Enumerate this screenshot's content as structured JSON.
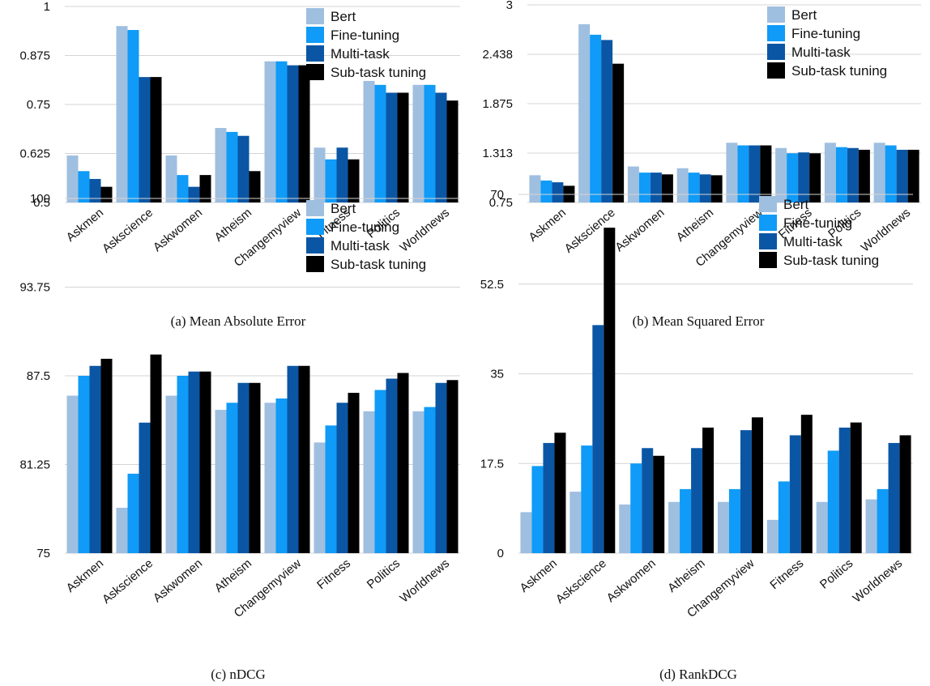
{
  "palette": {
    "Bert": "#9fbfe0",
    "Fine-tuning": "#0f9bf7",
    "Multi-task": "#0b56a4",
    "Sub-task tuning": "#000000"
  },
  "chart_data": [
    {
      "type": "bar",
      "caption": "(a) Mean Absolute Error",
      "categories": [
        "Askmen",
        "Askscience",
        "Askwomen",
        "Atheism",
        "Changemyview",
        "Fitness",
        "Politics",
        "Worldnews"
      ],
      "ylim": [
        0.5,
        1
      ],
      "yticks": [
        "1",
        "0.875",
        "0.75",
        "0.625",
        "0.5"
      ],
      "ytick_values": [
        1,
        0.875,
        0.75,
        0.625,
        0.5
      ],
      "grid": true,
      "legend": "top-right",
      "series": [
        {
          "name": "Bert",
          "values": [
            0.62,
            0.95,
            0.62,
            0.69,
            0.86,
            0.64,
            0.81,
            0.8
          ]
        },
        {
          "name": "Fine-tuning",
          "values": [
            0.58,
            0.94,
            0.57,
            0.68,
            0.86,
            0.61,
            0.8,
            0.8
          ]
        },
        {
          "name": "Multi-task",
          "values": [
            0.56,
            0.82,
            0.54,
            0.67,
            0.85,
            0.64,
            0.78,
            0.78
          ]
        },
        {
          "name": "Sub-task tuning",
          "values": [
            0.54,
            0.82,
            0.57,
            0.58,
            0.85,
            0.61,
            0.78,
            0.76
          ]
        }
      ]
    },
    {
      "type": "bar",
      "caption": "(b) Mean Squared Error",
      "categories": [
        "Askmen",
        "Askscience",
        "Askwomen",
        "Atheism",
        "Changemyview",
        "Fitness",
        "Politics",
        "Worldnews"
      ],
      "ylim": [
        0.75,
        3
      ],
      "yticks": [
        "3",
        "2.438",
        "1.875",
        "1.313",
        "0.75"
      ],
      "ytick_values": [
        3,
        2.438,
        1.875,
        1.313,
        0.75
      ],
      "grid": true,
      "legend": "top-right",
      "series": [
        {
          "name": "Bert",
          "values": [
            1.06,
            2.78,
            1.16,
            1.14,
            1.43,
            1.37,
            1.43,
            1.43
          ]
        },
        {
          "name": "Fine-tuning",
          "values": [
            1.0,
            2.66,
            1.09,
            1.09,
            1.4,
            1.31,
            1.38,
            1.4
          ]
        },
        {
          "name": "Multi-task",
          "values": [
            0.98,
            2.6,
            1.09,
            1.07,
            1.4,
            1.32,
            1.37,
            1.35
          ]
        },
        {
          "name": "Sub-task tuning",
          "values": [
            0.94,
            2.33,
            1.07,
            1.06,
            1.4,
            1.31,
            1.35,
            1.35
          ]
        }
      ]
    },
    {
      "type": "bar",
      "caption": "(c) nDCG",
      "categories": [
        "Askmen",
        "Askscience",
        "Askwomen",
        "Atheism",
        "Changemyview",
        "Fitness",
        "Politics",
        "Worldnews"
      ],
      "ylim": [
        75,
        100
      ],
      "yticks": [
        "100",
        "93.75",
        "87.5",
        "81.25",
        "75"
      ],
      "ytick_values": [
        100,
        93.75,
        87.5,
        81.25,
        75
      ],
      "grid": true,
      "legend": "top-right",
      "series": [
        {
          "name": "Bert",
          "values": [
            86.1,
            78.2,
            86.1,
            85.1,
            85.6,
            82.8,
            85.0,
            85.0
          ]
        },
        {
          "name": "Fine-tuning",
          "values": [
            87.5,
            80.6,
            87.5,
            85.6,
            85.9,
            84.0,
            86.5,
            85.3
          ]
        },
        {
          "name": "Multi-task",
          "values": [
            88.2,
            84.2,
            87.8,
            87.0,
            88.2,
            85.6,
            87.3,
            87.0
          ]
        },
        {
          "name": "Sub-task tuning",
          "values": [
            88.7,
            89.0,
            87.8,
            87.0,
            88.2,
            86.3,
            87.7,
            87.2
          ]
        }
      ]
    },
    {
      "type": "bar",
      "caption": "(d) RankDCG",
      "categories": [
        "Askmen",
        "Askscience",
        "Askwomen",
        "Atheism",
        "Changemyview",
        "Fitness",
        "Politics",
        "Worldnews"
      ],
      "ylim": [
        0,
        70
      ],
      "yticks": [
        "70",
        "52.5",
        "35",
        "17.5",
        "0"
      ],
      "ytick_values": [
        70,
        52.5,
        35,
        17.5,
        0
      ],
      "grid": true,
      "legend": "top-right",
      "series": [
        {
          "name": "Bert",
          "values": [
            8,
            12,
            9.5,
            10,
            10,
            6.5,
            10,
            10.5
          ]
        },
        {
          "name": "Fine-tuning",
          "values": [
            17,
            21,
            17.5,
            12.5,
            12.5,
            14,
            20,
            12.5
          ]
        },
        {
          "name": "Multi-task",
          "values": [
            21.5,
            44.5,
            20.5,
            20.5,
            24,
            23,
            24.5,
            21.5
          ]
        },
        {
          "name": "Sub-task tuning",
          "values": [
            23.5,
            63.5,
            19,
            24.5,
            26.5,
            27,
            25.5,
            23
          ]
        }
      ]
    }
  ]
}
